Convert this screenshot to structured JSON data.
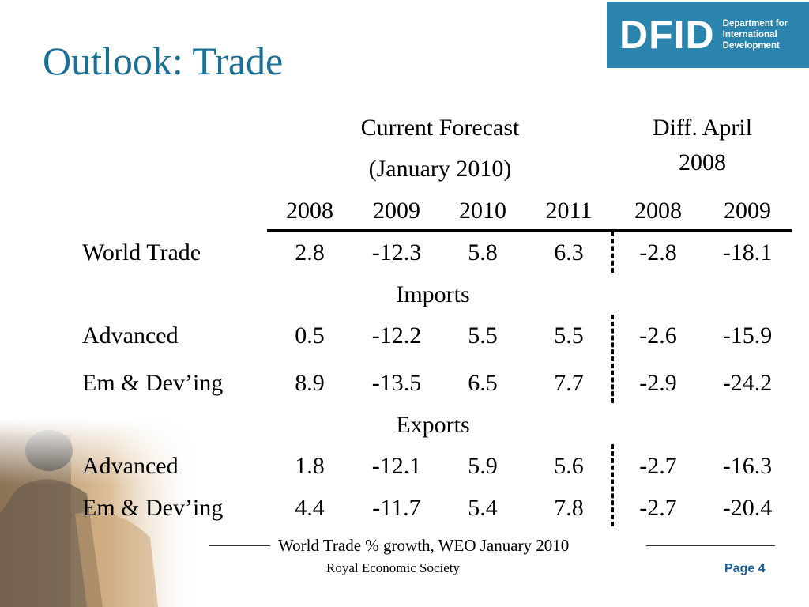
{
  "slide": {
    "title": "Outlook: Trade",
    "logo": {
      "mark": "DFID",
      "line1": "Department for",
      "line2": "International",
      "line3": "Development"
    },
    "footer_caption": "World Trade % growth, WEO January 2010",
    "society": "Royal Economic Society",
    "page_label": "Page 4"
  },
  "table": {
    "group_current": {
      "line1": "Current Forecast",
      "line2": "(January 2010)"
    },
    "group_diff": {
      "line1": "Diff. April",
      "line2": "2008"
    },
    "years": [
      "2008",
      "2009",
      "2010",
      "2011",
      "2008",
      "2009"
    ],
    "section_imports": "Imports",
    "section_exports": "Exports",
    "rows": [
      {
        "label": "World Trade",
        "values": [
          "2.8",
          "-12.3",
          "5.8",
          "6.3",
          "-2.8",
          "-18.1"
        ]
      },
      {
        "label": "Advanced",
        "values": [
          "0.5",
          "-12.2",
          "5.5",
          "5.5",
          "-2.6",
          "-15.9"
        ]
      },
      {
        "label": "Em & Dev’ing",
        "values": [
          "8.9",
          "-13.5",
          "6.5",
          "7.7",
          "-2.9",
          "-24.2"
        ]
      },
      {
        "label": "Advanced",
        "values": [
          "1.8",
          "-12.1",
          "5.9",
          "5.6",
          "-2.7",
          "-16.3"
        ]
      },
      {
        "label": "Em & Dev’ing",
        "values": [
          "4.4",
          "-11.7",
          "5.4",
          "7.8",
          "-2.7",
          "-20.4"
        ]
      }
    ]
  }
}
